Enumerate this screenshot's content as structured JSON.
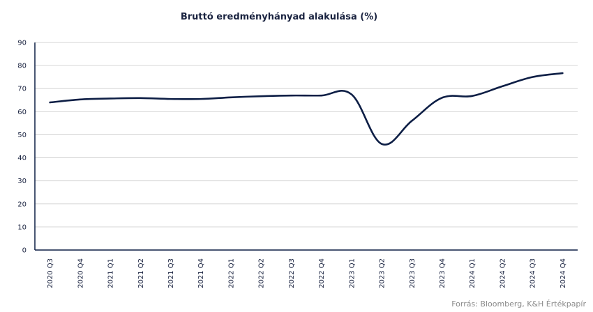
{
  "chart_data": {
    "type": "line",
    "title": "Bruttó eredményhányad alakulása (%)",
    "xlabel": "",
    "ylabel": "",
    "categories": [
      "2020 Q3",
      "2020 Q4",
      "2021 Q1",
      "2021 Q2",
      "2021 Q3",
      "2021 Q4",
      "2022 Q1",
      "2022 Q2",
      "2022 Q3",
      "2022 Q4",
      "2023 Q1",
      "2023 Q2",
      "2023 Q3",
      "2023 Q4",
      "2024 Q1",
      "2024 Q2",
      "2024 Q3",
      "2024 Q4"
    ],
    "series": [
      {
        "values": [
          64.0,
          65.3,
          65.7,
          65.9,
          65.5,
          65.5,
          66.2,
          66.7,
          67.0,
          67.0,
          67.5,
          46.0,
          56.0,
          66.0,
          66.8,
          71.0,
          75.0,
          76.7
        ]
      }
    ],
    "ylim": [
      0,
      90
    ],
    "yticks": [
      0,
      10,
      20,
      30,
      40,
      50,
      60,
      70,
      80,
      90
    ],
    "grid": true,
    "line_color": "#0d1e45"
  },
  "source": "Forrás: Bloomberg, K&H Értékpapír"
}
